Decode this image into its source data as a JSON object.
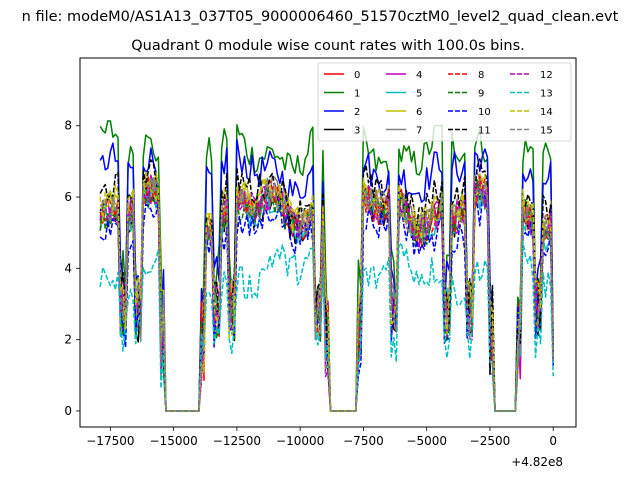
{
  "figure": {
    "suptitle": "n file: modeM0/AS1A13_037T05_9000006460_51570cztM0_level2_quad_clean.evt",
    "title": "Quadrant 0 module wise count rates with 100.0s bins.",
    "offset_label": "+4.82e8"
  },
  "chart_data": {
    "type": "line",
    "title": "Quadrant 0 module wise count rates with 100.0s bins.",
    "xlabel": "",
    "ylabel": "",
    "x_offset": 482000000,
    "xlim": [
      -18700,
      900
    ],
    "ylim": [
      -0.45,
      9.9
    ],
    "xticks": [
      -17500,
      -15000,
      -12500,
      -10000,
      -7500,
      -5000,
      -2500,
      0
    ],
    "xtick_labels": [
      "−17500",
      "−15000",
      "−12500",
      "−10000",
      "−7500",
      "−5000",
      "−2500",
      "0"
    ],
    "yticks": [
      0,
      2,
      4,
      6,
      8
    ],
    "ytick_labels": [
      "0",
      "2",
      "4",
      "6",
      "8"
    ],
    "grid": false,
    "legend_position": "upper right",
    "legend_columns": 4,
    "x_range": [
      -17900,
      0
    ],
    "bin_seconds": 100,
    "gaps": [
      [
        -15300,
        -14000
      ],
      [
        -8800,
        -7800
      ],
      [
        -2300,
        -1500
      ]
    ],
    "series": [
      {
        "name": "0",
        "color": "#ff0000",
        "dashed": false,
        "level": 5.6
      },
      {
        "name": "1",
        "color": "#008000",
        "dashed": false,
        "level": 7.3
      },
      {
        "name": "2",
        "color": "#0000ff",
        "dashed": false,
        "level": 6.7
      },
      {
        "name": "3",
        "color": "#000000",
        "dashed": false,
        "level": 5.5
      },
      {
        "name": "4",
        "color": "#bf00bf",
        "dashed": false,
        "level": 5.6
      },
      {
        "name": "5",
        "color": "#00bfbf",
        "dashed": false,
        "level": 5.5
      },
      {
        "name": "6",
        "color": "#bfbf00",
        "dashed": false,
        "level": 5.8
      },
      {
        "name": "7",
        "color": "#808080",
        "dashed": false,
        "level": 5.7
      },
      {
        "name": "8",
        "color": "#ff0000",
        "dashed": true,
        "level": 5.6
      },
      {
        "name": "9",
        "color": "#008000",
        "dashed": true,
        "level": 5.5
      },
      {
        "name": "10",
        "color": "#0000ff",
        "dashed": true,
        "level": 5.1
      },
      {
        "name": "11",
        "color": "#000000",
        "dashed": true,
        "level": 6.1
      },
      {
        "name": "12",
        "color": "#bf00bf",
        "dashed": true,
        "level": 5.6
      },
      {
        "name": "13",
        "color": "#00bfbf",
        "dashed": true,
        "level": 3.9
      },
      {
        "name": "14",
        "color": "#bfbf00",
        "dashed": true,
        "level": 5.8
      },
      {
        "name": "15",
        "color": "#808080",
        "dashed": true,
        "level": 5.6
      }
    ]
  }
}
